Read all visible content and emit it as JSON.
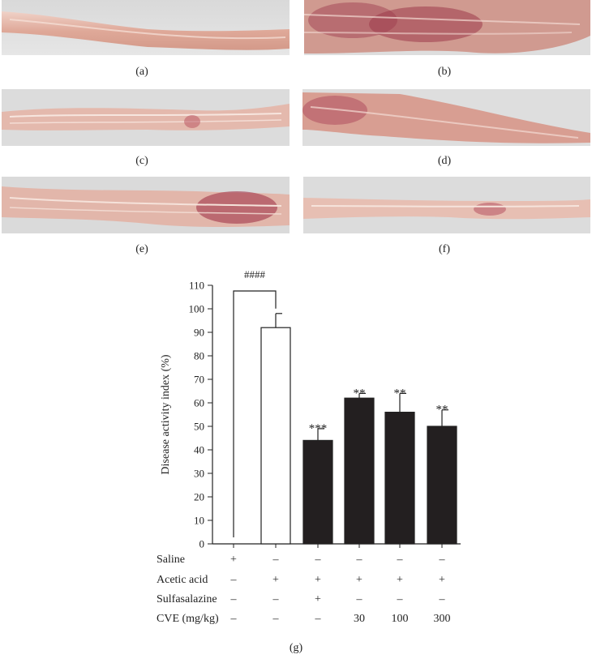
{
  "panels": {
    "a": "(a)",
    "b": "(b)",
    "c": "(c)",
    "d": "(d)",
    "e": "(e)",
    "f": "(f)",
    "g": "(g)"
  },
  "chart_data": {
    "type": "bar",
    "ylabel": "Disease activity index (%)",
    "ylim": [
      0,
      110
    ],
    "yticks": [
      0,
      10,
      20,
      30,
      40,
      50,
      60,
      70,
      80,
      90,
      100,
      110
    ],
    "groups": [
      "saline",
      "acetic",
      "sulfa",
      "cve30",
      "cve100",
      "cve300"
    ],
    "values": [
      0,
      92,
      44,
      62,
      56,
      50
    ],
    "errors": [
      0,
      6,
      5,
      2,
      8,
      7
    ],
    "fills": [
      "#ffffff",
      "#ffffff",
      "#231f20",
      "#231f20",
      "#231f20",
      "#231f20"
    ],
    "stars": [
      "",
      "",
      "***",
      "**",
      "**",
      "**"
    ],
    "comparison": {
      "from": 0,
      "to": 1,
      "label": "####"
    },
    "treatment_rows": [
      {
        "label": "Saline",
        "signs": [
          "+",
          "–",
          "–",
          "–",
          "–",
          "–"
        ]
      },
      {
        "label": "Acetic acid",
        "signs": [
          "–",
          "+",
          "+",
          "+",
          "+",
          "+"
        ]
      },
      {
        "label": "Sulfasalazine",
        "signs": [
          "–",
          "–",
          "+",
          "–",
          "–",
          "–"
        ]
      },
      {
        "label": "CVE (mg/kg)",
        "signs": [
          "–",
          "–",
          "–",
          "30",
          "100",
          "300"
        ]
      }
    ]
  },
  "colors": {
    "tissue_base": "#e7c1b6",
    "tissue_light": "#f3dcd4",
    "tissue_inflamed": "#a23a4e",
    "background": "#dcdcdc",
    "bar_dark": "#231f20"
  }
}
